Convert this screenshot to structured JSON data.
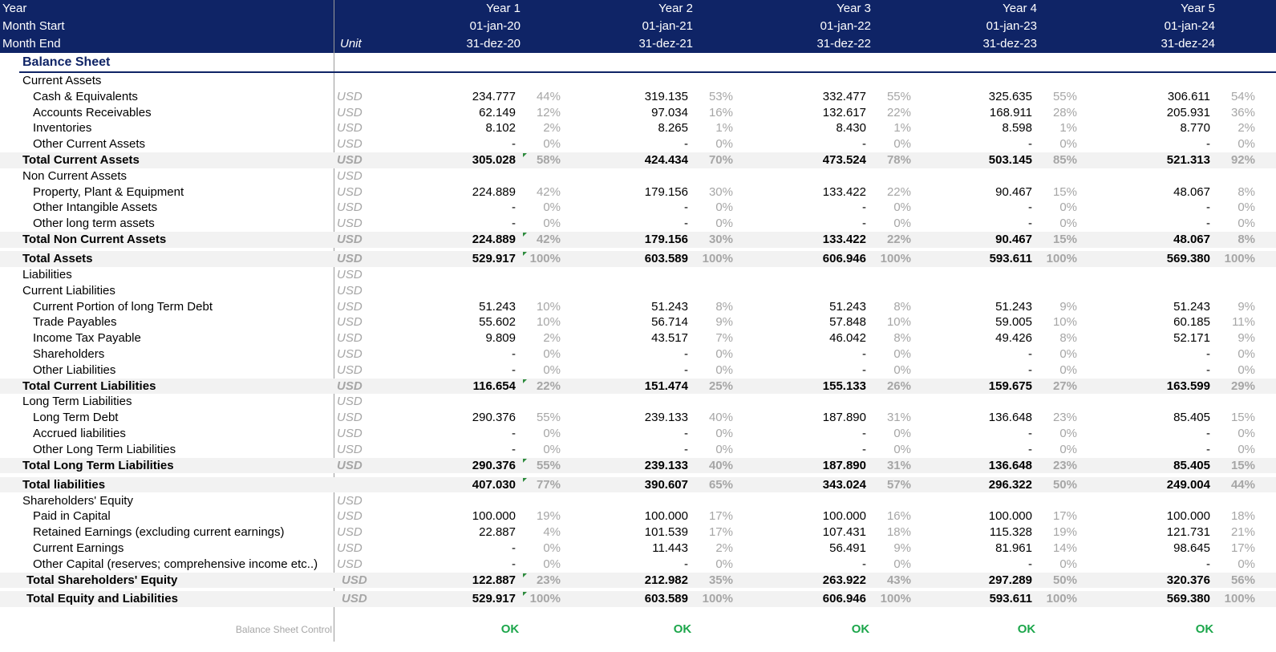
{
  "header": {
    "row_labels": [
      "Year",
      "Month Start",
      "Month End"
    ],
    "unit_label": "Unit",
    "years": [
      {
        "year": "Year  1",
        "start": "01-jan-20",
        "end": "31-dez-20"
      },
      {
        "year": "Year  2",
        "start": "01-jan-21",
        "end": "31-dez-21"
      },
      {
        "year": "Year  3",
        "start": "01-jan-22",
        "end": "31-dez-22"
      },
      {
        "year": "Year  4",
        "start": "01-jan-23",
        "end": "31-dez-23"
      },
      {
        "year": "Year  5",
        "start": "01-jan-24",
        "end": "31-dez-24"
      }
    ]
  },
  "section_title": "Balance Sheet",
  "rows": [
    {
      "label": "Current Assets",
      "style": "section",
      "unit": "",
      "cells": null
    },
    {
      "label": "Cash & Equivalents",
      "style": "item",
      "unit": "USD",
      "cells": [
        [
          "234.777",
          "44%"
        ],
        [
          "319.135",
          "53%"
        ],
        [
          "332.477",
          "55%"
        ],
        [
          "325.635",
          "55%"
        ],
        [
          "306.611",
          "54%"
        ]
      ]
    },
    {
      "label": "Accounts Receivables",
      "style": "item",
      "unit": "USD",
      "cells": [
        [
          "62.149",
          "12%"
        ],
        [
          "97.034",
          "16%"
        ],
        [
          "132.617",
          "22%"
        ],
        [
          "168.911",
          "28%"
        ],
        [
          "205.931",
          "36%"
        ]
      ]
    },
    {
      "label": "Inventories",
      "style": "item",
      "unit": "USD",
      "cells": [
        [
          "8.102",
          "2%"
        ],
        [
          "8.265",
          "1%"
        ],
        [
          "8.430",
          "1%"
        ],
        [
          "8.598",
          "1%"
        ],
        [
          "8.770",
          "2%"
        ]
      ]
    },
    {
      "label": "Other Current Assets",
      "style": "item",
      "unit": "USD",
      "cells": [
        [
          "-",
          "0%"
        ],
        [
          "-",
          "0%"
        ],
        [
          "-",
          "0%"
        ],
        [
          "-",
          "0%"
        ],
        [
          "-",
          "0%"
        ]
      ]
    },
    {
      "label": "Total Current Assets",
      "style": "total",
      "unit": "USD",
      "cells": [
        [
          "305.028",
          "58%"
        ],
        [
          "424.434",
          "70%"
        ],
        [
          "473.524",
          "78%"
        ],
        [
          "503.145",
          "85%"
        ],
        [
          "521.313",
          "92%"
        ]
      ]
    },
    {
      "label": "Non Current Assets",
      "style": "section",
      "unit": "USD",
      "cells": null
    },
    {
      "label": "Property, Plant & Equipment",
      "style": "item",
      "unit": "USD",
      "cells": [
        [
          "224.889",
          "42%"
        ],
        [
          "179.156",
          "30%"
        ],
        [
          "133.422",
          "22%"
        ],
        [
          "90.467",
          "15%"
        ],
        [
          "48.067",
          "8%"
        ]
      ]
    },
    {
      "label": "Other Intangible Assets",
      "style": "item",
      "unit": "USD",
      "cells": [
        [
          "-",
          "0%"
        ],
        [
          "-",
          "0%"
        ],
        [
          "-",
          "0%"
        ],
        [
          "-",
          "0%"
        ],
        [
          "-",
          "0%"
        ]
      ]
    },
    {
      "label": "Other long term assets",
      "style": "item",
      "unit": "USD",
      "cells": [
        [
          "-",
          "0%"
        ],
        [
          "-",
          "0%"
        ],
        [
          "-",
          "0%"
        ],
        [
          "-",
          "0%"
        ],
        [
          "-",
          "0%"
        ]
      ]
    },
    {
      "label": "Total Non Current Assets",
      "style": "total",
      "unit": "USD",
      "cells": [
        [
          "224.889",
          "42%"
        ],
        [
          "179.156",
          "30%"
        ],
        [
          "133.422",
          "22%"
        ],
        [
          "90.467",
          "15%"
        ],
        [
          "48.067",
          "8%"
        ]
      ]
    },
    {
      "label": "Total Assets",
      "style": "total",
      "unit": "USD",
      "gap": true,
      "cells": [
        [
          "529.917",
          "100%"
        ],
        [
          "603.589",
          "100%"
        ],
        [
          "606.946",
          "100%"
        ],
        [
          "593.611",
          "100%"
        ],
        [
          "569.380",
          "100%"
        ]
      ]
    },
    {
      "label": "Liabilities",
      "style": "section",
      "unit": "USD",
      "cells": null
    },
    {
      "label": "Current Liabilities",
      "style": "section",
      "unit": "USD",
      "cells": null
    },
    {
      "label": "Current Portion of long Term Debt",
      "style": "item",
      "unit": "USD",
      "cells": [
        [
          "51.243",
          "10%"
        ],
        [
          "51.243",
          "8%"
        ],
        [
          "51.243",
          "8%"
        ],
        [
          "51.243",
          "9%"
        ],
        [
          "51.243",
          "9%"
        ]
      ]
    },
    {
      "label": "Trade Payables",
      "style": "item",
      "unit": "USD",
      "cells": [
        [
          "55.602",
          "10%"
        ],
        [
          "56.714",
          "9%"
        ],
        [
          "57.848",
          "10%"
        ],
        [
          "59.005",
          "10%"
        ],
        [
          "60.185",
          "11%"
        ]
      ]
    },
    {
      "label": "Income Tax Payable",
      "style": "item",
      "unit": "USD",
      "cells": [
        [
          "9.809",
          "2%"
        ],
        [
          "43.517",
          "7%"
        ],
        [
          "46.042",
          "8%"
        ],
        [
          "49.426",
          "8%"
        ],
        [
          "52.171",
          "9%"
        ]
      ]
    },
    {
      "label": "Shareholders",
      "style": "item",
      "unit": "USD",
      "cells": [
        [
          "-",
          "0%"
        ],
        [
          "-",
          "0%"
        ],
        [
          "-",
          "0%"
        ],
        [
          "-",
          "0%"
        ],
        [
          "-",
          "0%"
        ]
      ]
    },
    {
      "label": "Other Liabilities",
      "style": "item",
      "unit": "USD",
      "cells": [
        [
          "-",
          "0%"
        ],
        [
          "-",
          "0%"
        ],
        [
          "-",
          "0%"
        ],
        [
          "-",
          "0%"
        ],
        [
          "-",
          "0%"
        ]
      ]
    },
    {
      "label": "Total Current Liabilities",
      "style": "total",
      "unit": "USD",
      "cells": [
        [
          "116.654",
          "22%"
        ],
        [
          "151.474",
          "25%"
        ],
        [
          "155.133",
          "26%"
        ],
        [
          "159.675",
          "27%"
        ],
        [
          "163.599",
          "29%"
        ]
      ]
    },
    {
      "label": "Long Term Liabilities",
      "style": "section",
      "unit": "USD",
      "cells": null
    },
    {
      "label": "Long Term Debt",
      "style": "item",
      "unit": "USD",
      "cells": [
        [
          "290.376",
          "55%"
        ],
        [
          "239.133",
          "40%"
        ],
        [
          "187.890",
          "31%"
        ],
        [
          "136.648",
          "23%"
        ],
        [
          "85.405",
          "15%"
        ]
      ]
    },
    {
      "label": "Accrued liabilities",
      "style": "item",
      "unit": "USD",
      "cells": [
        [
          "-",
          "0%"
        ],
        [
          "-",
          "0%"
        ],
        [
          "-",
          "0%"
        ],
        [
          "-",
          "0%"
        ],
        [
          "-",
          "0%"
        ]
      ]
    },
    {
      "label": "Other Long Term Liabilities",
      "style": "item",
      "unit": "USD",
      "cells": [
        [
          "-",
          "0%"
        ],
        [
          "-",
          "0%"
        ],
        [
          "-",
          "0%"
        ],
        [
          "-",
          "0%"
        ],
        [
          "-",
          "0%"
        ]
      ]
    },
    {
      "label": "Total Long Term Liabilities",
      "style": "total",
      "unit": "USD",
      "cells": [
        [
          "290.376",
          "55%"
        ],
        [
          "239.133",
          "40%"
        ],
        [
          "187.890",
          "31%"
        ],
        [
          "136.648",
          "23%"
        ],
        [
          "85.405",
          "15%"
        ]
      ]
    },
    {
      "label": "Total liabilities",
      "style": "total",
      "unit": "",
      "gap": true,
      "cells": [
        [
          "407.030",
          "77%"
        ],
        [
          "390.607",
          "65%"
        ],
        [
          "343.024",
          "57%"
        ],
        [
          "296.322",
          "50%"
        ],
        [
          "249.004",
          "44%"
        ]
      ]
    },
    {
      "label": "Shareholders' Equity",
      "style": "section",
      "unit": "USD",
      "cells": null
    },
    {
      "label": "Paid in Capital",
      "style": "item",
      "unit": "USD",
      "cells": [
        [
          "100.000",
          "19%"
        ],
        [
          "100.000",
          "17%"
        ],
        [
          "100.000",
          "16%"
        ],
        [
          "100.000",
          "17%"
        ],
        [
          "100.000",
          "18%"
        ]
      ]
    },
    {
      "label": "Retained Earnings (excluding current earnings)",
      "style": "item",
      "unit": "USD",
      "cells": [
        [
          "22.887",
          "4%"
        ],
        [
          "101.539",
          "17%"
        ],
        [
          "107.431",
          "18%"
        ],
        [
          "115.328",
          "19%"
        ],
        [
          "121.731",
          "21%"
        ]
      ]
    },
    {
      "label": "Current Earnings",
      "style": "item",
      "unit": "USD",
      "cells": [
        [
          "-",
          "0%"
        ],
        [
          "11.443",
          "2%"
        ],
        [
          "56.491",
          "9%"
        ],
        [
          "81.961",
          "14%"
        ],
        [
          "98.645",
          "17%"
        ]
      ]
    },
    {
      "label": "Other Capital (reserves; comprehensive income etc..)",
      "style": "item",
      "unit": "USD",
      "cells": [
        [
          "-",
          "0%"
        ],
        [
          "-",
          "0%"
        ],
        [
          "-",
          "0%"
        ],
        [
          "-",
          "0%"
        ],
        [
          "-",
          "0%"
        ]
      ]
    },
    {
      "label": "Total Shareholders' Equity",
      "style": "total-sh",
      "unit": "USD",
      "cells": [
        [
          "122.887",
          "23%"
        ],
        [
          "212.982",
          "35%"
        ],
        [
          "263.922",
          "43%"
        ],
        [
          "297.289",
          "50%"
        ],
        [
          "320.376",
          "56%"
        ]
      ]
    },
    {
      "label": "Total Equity and Liabilities",
      "style": "total-sh",
      "unit": "USD",
      "gap": true,
      "cells": [
        [
          "529.917",
          "100%"
        ],
        [
          "603.589",
          "100%"
        ],
        [
          "606.946",
          "100%"
        ],
        [
          "593.611",
          "100%"
        ],
        [
          "569.380",
          "100%"
        ]
      ]
    }
  ],
  "control": {
    "label": "Balance Sheet Control",
    "values": [
      "OK",
      "OK",
      "OK",
      "OK",
      "OK"
    ]
  },
  "colors": {
    "header_bg": "#0f2466",
    "ok_green": "#1ca64b",
    "muted_gray": "#a6a6a6",
    "total_row_bg": "#f2f2f2"
  }
}
